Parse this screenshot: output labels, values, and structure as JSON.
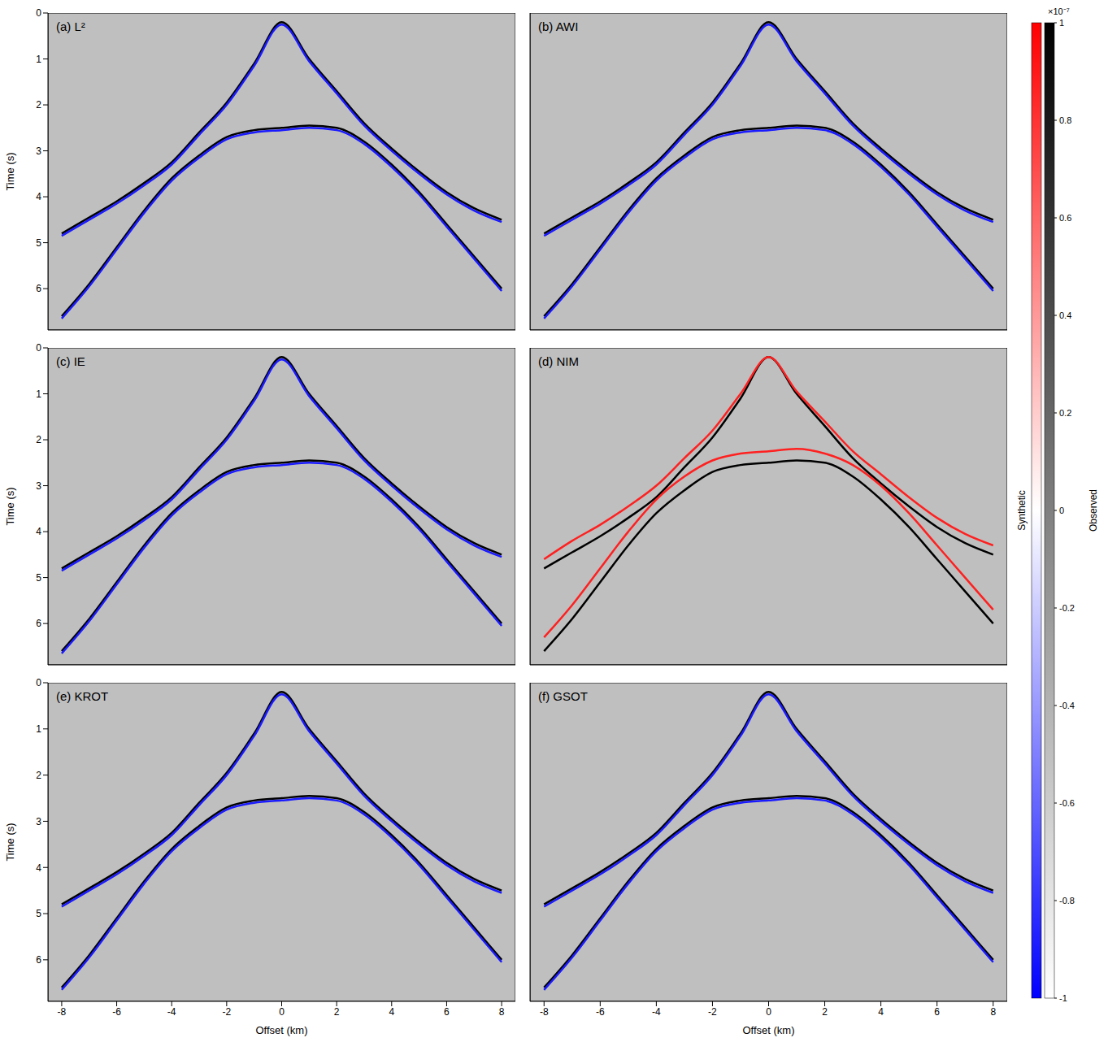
{
  "chart_data": [
    {
      "type": "line",
      "title": "(a) L²",
      "ylabel": "Time (s)",
      "tick_labels": "y",
      "x": [
        -8,
        -7,
        -6,
        -5,
        -4,
        -3,
        -2,
        -1,
        0,
        1,
        2,
        3,
        4,
        5,
        6,
        7,
        8
      ],
      "xlim": [
        -8.5,
        8.5
      ],
      "xticks": [
        -8,
        -6,
        -4,
        -2,
        0,
        2,
        4,
        6,
        8
      ],
      "ylim": [
        0,
        6.9
      ],
      "yticks": [
        0,
        1,
        2,
        3,
        4,
        5,
        6
      ],
      "series": [
        {
          "color": "#000000",
          "values": [
            4.8,
            4.45,
            4.1,
            3.7,
            3.25,
            2.6,
            1.95,
            1.1,
            0.2,
            1.0,
            1.7,
            2.4,
            2.95,
            3.45,
            3.9,
            4.25,
            4.5
          ]
        },
        {
          "color": "#1a1aff",
          "values": [
            4.85,
            4.5,
            4.15,
            3.75,
            3.3,
            2.65,
            2.0,
            1.15,
            0.25,
            1.05,
            1.75,
            2.45,
            3.0,
            3.5,
            3.95,
            4.3,
            4.55
          ]
        },
        {
          "color": "#000000",
          "values": [
            6.6,
            5.9,
            5.1,
            4.3,
            3.6,
            3.1,
            2.7,
            2.55,
            2.5,
            2.45,
            2.5,
            2.8,
            3.3,
            3.9,
            4.6,
            5.3,
            6.0
          ]
        },
        {
          "color": "#1a1aff",
          "values": [
            6.65,
            5.95,
            5.15,
            4.35,
            3.65,
            3.15,
            2.75,
            2.6,
            2.55,
            2.5,
            2.55,
            2.85,
            3.35,
            3.95,
            4.65,
            5.35,
            6.05
          ]
        }
      ]
    },
    {
      "type": "line",
      "title": "(b) AWI",
      "tick_labels": false,
      "x": [
        -8,
        -7,
        -6,
        -5,
        -4,
        -3,
        -2,
        -1,
        0,
        1,
        2,
        3,
        4,
        5,
        6,
        7,
        8
      ],
      "xlim": [
        -8.5,
        8.5
      ],
      "xticks": [
        -8,
        -6,
        -4,
        -2,
        0,
        2,
        4,
        6,
        8
      ],
      "ylim": [
        0,
        6.9
      ],
      "yticks": [
        0,
        1,
        2,
        3,
        4,
        5,
        6
      ],
      "series": [
        {
          "color": "#000000",
          "values": [
            4.8,
            4.45,
            4.1,
            3.7,
            3.25,
            2.6,
            1.95,
            1.1,
            0.2,
            1.0,
            1.7,
            2.4,
            2.95,
            3.45,
            3.9,
            4.25,
            4.5
          ]
        },
        {
          "color": "#1a1aff",
          "values": [
            4.85,
            4.5,
            4.15,
            3.75,
            3.3,
            2.65,
            2.0,
            1.15,
            0.25,
            1.05,
            1.75,
            2.45,
            3.0,
            3.5,
            3.95,
            4.3,
            4.55
          ]
        },
        {
          "color": "#000000",
          "values": [
            6.6,
            5.9,
            5.1,
            4.3,
            3.6,
            3.1,
            2.7,
            2.55,
            2.5,
            2.45,
            2.5,
            2.8,
            3.3,
            3.9,
            4.6,
            5.3,
            6.0
          ]
        },
        {
          "color": "#1a1aff",
          "values": [
            6.65,
            5.95,
            5.15,
            4.35,
            3.65,
            3.15,
            2.75,
            2.6,
            2.55,
            2.5,
            2.55,
            2.85,
            3.35,
            3.95,
            4.65,
            5.35,
            6.05
          ]
        }
      ]
    },
    {
      "type": "line",
      "title": "(c) IE",
      "ylabel": "Time (s)",
      "tick_labels": "y",
      "x": [
        -8,
        -7,
        -6,
        -5,
        -4,
        -3,
        -2,
        -1,
        0,
        1,
        2,
        3,
        4,
        5,
        6,
        7,
        8
      ],
      "xlim": [
        -8.5,
        8.5
      ],
      "xticks": [
        -8,
        -6,
        -4,
        -2,
        0,
        2,
        4,
        6,
        8
      ],
      "ylim": [
        0,
        6.9
      ],
      "yticks": [
        0,
        1,
        2,
        3,
        4,
        5,
        6
      ],
      "series": [
        {
          "color": "#000000",
          "values": [
            4.8,
            4.45,
            4.1,
            3.7,
            3.25,
            2.6,
            1.95,
            1.1,
            0.2,
            1.0,
            1.7,
            2.4,
            2.95,
            3.45,
            3.9,
            4.25,
            4.5
          ]
        },
        {
          "color": "#1a1aff",
          "values": [
            4.85,
            4.5,
            4.15,
            3.75,
            3.3,
            2.65,
            2.0,
            1.15,
            0.25,
            1.05,
            1.75,
            2.45,
            3.0,
            3.5,
            3.95,
            4.3,
            4.55
          ]
        },
        {
          "color": "#000000",
          "values": [
            6.6,
            5.9,
            5.1,
            4.3,
            3.6,
            3.1,
            2.7,
            2.55,
            2.5,
            2.45,
            2.5,
            2.8,
            3.3,
            3.9,
            4.6,
            5.3,
            6.0
          ]
        },
        {
          "color": "#1a1aff",
          "values": [
            6.65,
            5.95,
            5.15,
            4.35,
            3.65,
            3.15,
            2.75,
            2.6,
            2.55,
            2.5,
            2.55,
            2.85,
            3.35,
            3.95,
            4.65,
            5.35,
            6.05
          ]
        }
      ]
    },
    {
      "type": "line",
      "title": "(d) NIM",
      "tick_labels": false,
      "x": [
        -8,
        -7,
        -6,
        -5,
        -4,
        -3,
        -2,
        -1,
        0,
        1,
        2,
        3,
        4,
        5,
        6,
        7,
        8
      ],
      "xlim": [
        -8.5,
        8.5
      ],
      "xticks": [
        -8,
        -6,
        -4,
        -2,
        0,
        2,
        4,
        6,
        8
      ],
      "ylim": [
        0,
        6.9
      ],
      "yticks": [
        0,
        1,
        2,
        3,
        4,
        5,
        6
      ],
      "series": [
        {
          "color": "#000000",
          "values": [
            4.8,
            4.45,
            4.1,
            3.7,
            3.25,
            2.6,
            1.95,
            1.1,
            0.2,
            1.0,
            1.7,
            2.4,
            2.95,
            3.45,
            3.9,
            4.25,
            4.5
          ]
        },
        {
          "color": "#ff2020",
          "values": [
            4.6,
            4.2,
            3.85,
            3.45,
            3.0,
            2.4,
            1.8,
            1.0,
            0.2,
            0.95,
            1.6,
            2.25,
            2.75,
            3.25,
            3.7,
            4.05,
            4.3
          ]
        },
        {
          "color": "#000000",
          "values": [
            6.6,
            5.9,
            5.1,
            4.3,
            3.6,
            3.1,
            2.7,
            2.55,
            2.5,
            2.45,
            2.5,
            2.8,
            3.3,
            3.9,
            4.6,
            5.3,
            6.0
          ]
        },
        {
          "color": "#ff2020",
          "values": [
            6.3,
            5.6,
            4.8,
            4.0,
            3.3,
            2.8,
            2.45,
            2.3,
            2.25,
            2.2,
            2.3,
            2.55,
            3.0,
            3.6,
            4.3,
            5.0,
            5.7
          ]
        }
      ]
    },
    {
      "type": "line",
      "title": "(e) KROT",
      "xlabel": "Offset (km)",
      "ylabel": "Time (s)",
      "tick_labels": true,
      "x": [
        -8,
        -7,
        -6,
        -5,
        -4,
        -3,
        -2,
        -1,
        0,
        1,
        2,
        3,
        4,
        5,
        6,
        7,
        8
      ],
      "xlim": [
        -8.5,
        8.5
      ],
      "xticks": [
        -8,
        -6,
        -4,
        -2,
        0,
        2,
        4,
        6,
        8
      ],
      "ylim": [
        0,
        6.9
      ],
      "yticks": [
        0,
        1,
        2,
        3,
        4,
        5,
        6
      ],
      "series": [
        {
          "color": "#000000",
          "values": [
            4.8,
            4.45,
            4.1,
            3.7,
            3.25,
            2.6,
            1.95,
            1.1,
            0.2,
            1.0,
            1.7,
            2.4,
            2.95,
            3.45,
            3.9,
            4.25,
            4.5
          ]
        },
        {
          "color": "#1a1aff",
          "values": [
            4.85,
            4.5,
            4.15,
            3.75,
            3.3,
            2.65,
            2.0,
            1.15,
            0.25,
            1.05,
            1.75,
            2.45,
            3.0,
            3.5,
            3.95,
            4.3,
            4.55
          ]
        },
        {
          "color": "#000000",
          "values": [
            6.6,
            5.9,
            5.1,
            4.3,
            3.6,
            3.1,
            2.7,
            2.55,
            2.5,
            2.45,
            2.5,
            2.8,
            3.3,
            3.9,
            4.6,
            5.3,
            6.0
          ]
        },
        {
          "color": "#1a1aff",
          "values": [
            6.65,
            5.95,
            5.15,
            4.35,
            3.65,
            3.15,
            2.75,
            2.6,
            2.55,
            2.5,
            2.55,
            2.85,
            3.35,
            3.95,
            4.65,
            5.35,
            6.05
          ]
        }
      ]
    },
    {
      "type": "line",
      "title": "(f) GSOT",
      "xlabel": "Offset (km)",
      "tick_labels": "x",
      "x": [
        -8,
        -7,
        -6,
        -5,
        -4,
        -3,
        -2,
        -1,
        0,
        1,
        2,
        3,
        4,
        5,
        6,
        7,
        8
      ],
      "xlim": [
        -8.5,
        8.5
      ],
      "xticks": [
        -8,
        -6,
        -4,
        -2,
        0,
        2,
        4,
        6,
        8
      ],
      "ylim": [
        0,
        6.9
      ],
      "yticks": [
        0,
        1,
        2,
        3,
        4,
        5,
        6
      ],
      "series": [
        {
          "color": "#000000",
          "values": [
            4.8,
            4.45,
            4.1,
            3.7,
            3.25,
            2.6,
            1.95,
            1.1,
            0.2,
            1.0,
            1.7,
            2.4,
            2.95,
            3.45,
            3.9,
            4.25,
            4.5
          ]
        },
        {
          "color": "#1a1aff",
          "values": [
            4.85,
            4.5,
            4.15,
            3.75,
            3.3,
            2.65,
            2.0,
            1.15,
            0.25,
            1.05,
            1.75,
            2.45,
            3.0,
            3.5,
            3.95,
            4.3,
            4.55
          ]
        },
        {
          "color": "#000000",
          "values": [
            6.6,
            5.9,
            5.1,
            4.3,
            3.6,
            3.1,
            2.7,
            2.55,
            2.5,
            2.45,
            2.5,
            2.8,
            3.3,
            3.9,
            4.6,
            5.3,
            6.0
          ]
        },
        {
          "color": "#1a1aff",
          "values": [
            6.65,
            5.95,
            5.15,
            4.35,
            3.65,
            3.15,
            2.75,
            2.6,
            2.55,
            2.5,
            2.55,
            2.85,
            3.35,
            3.95,
            4.65,
            5.35,
            6.05
          ]
        }
      ]
    }
  ],
  "colorbar": {
    "range": [
      -1,
      1
    ],
    "ticks": [
      -1,
      -0.8,
      -0.6,
      -0.4,
      -0.2,
      0,
      0.2,
      0.4,
      0.6,
      0.8,
      1
    ],
    "multiplier": "×10⁻⁷",
    "labels": [
      "Synthetic",
      "Observed"
    ]
  }
}
